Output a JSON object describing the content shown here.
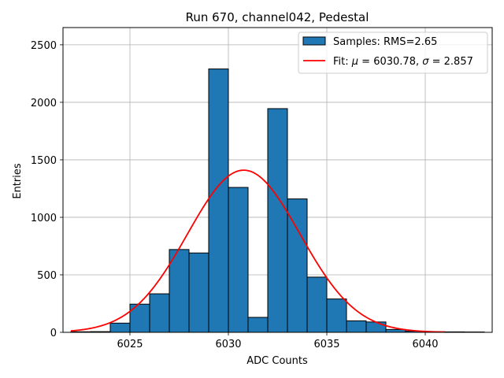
{
  "chart_data": {
    "type": "bar",
    "title": "Run 670, channel042, Pedestal",
    "xlabel": "ADC Counts",
    "ylabel": "Entries",
    "xlim": [
      6021.6,
      6043.4
    ],
    "ylim": [
      0,
      2650
    ],
    "xticks": [
      6025,
      6030,
      6035,
      6040
    ],
    "yticks": [
      0,
      500,
      1000,
      1500,
      2000,
      2500
    ],
    "grid": true,
    "legend_position": "top-right",
    "histogram": {
      "name": "Samples: RMS=2.65",
      "color": "#1f77b4",
      "edgecolor": "#000000",
      "bin_edges": [
        6022,
        6023,
        6024,
        6025,
        6026,
        6027,
        6028,
        6029,
        6030,
        6031,
        6032,
        6033,
        6034,
        6035,
        6036,
        6037,
        6038,
        6039,
        6040,
        6041,
        6042,
        6043
      ],
      "counts": [
        5,
        6,
        80,
        245,
        335,
        720,
        690,
        2290,
        1260,
        130,
        1945,
        1160,
        480,
        290,
        100,
        90,
        25,
        10,
        5,
        4,
        3
      ]
    },
    "fit": {
      "name": "Fit: μ = 6030.78, σ = 2.857",
      "label_prefix": "Fit: ",
      "mu_symbol": "μ",
      "mu_text": " = 6030.78, ",
      "sigma_symbol": "σ",
      "sigma_text": " = 2.857",
      "color": "#ff0000",
      "mu": 6030.78,
      "sigma": 2.857,
      "amplitude": 1410,
      "x_range": [
        6022,
        6041
      ]
    }
  }
}
